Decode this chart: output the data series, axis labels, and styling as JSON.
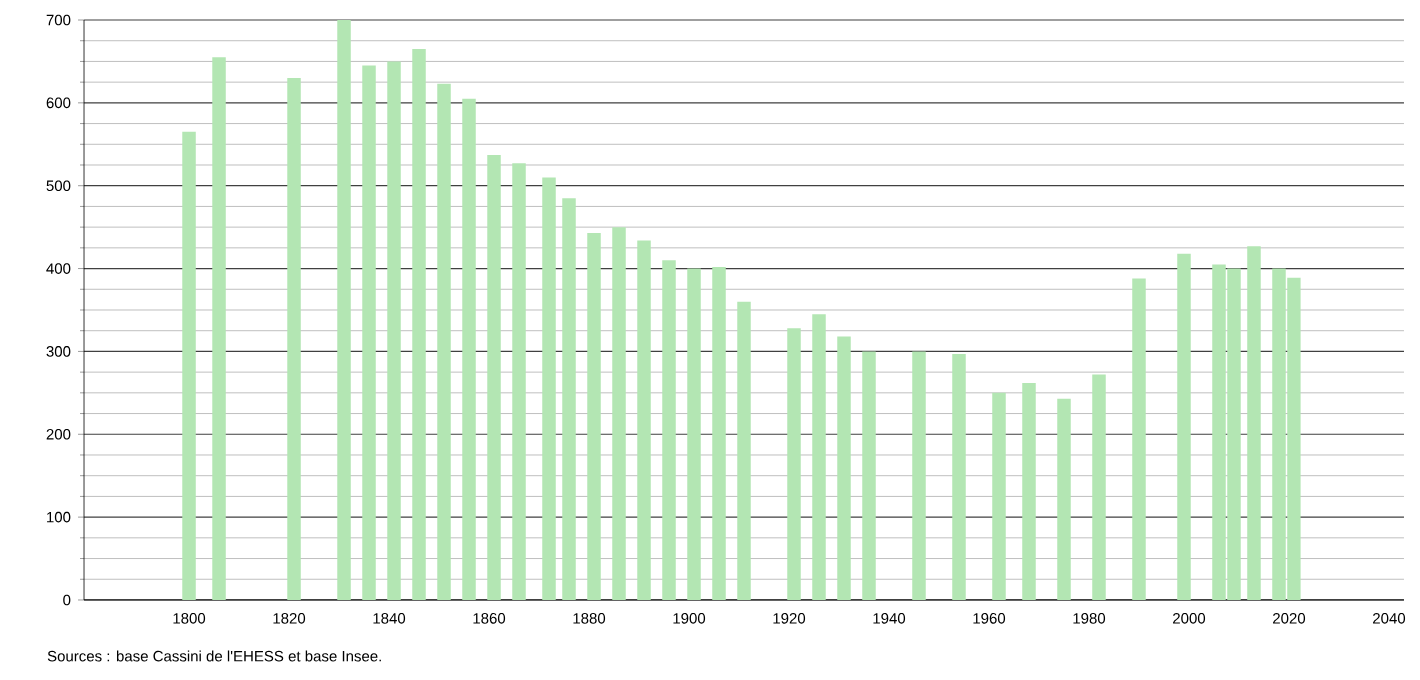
{
  "chart_data": {
    "type": "bar",
    "x": [
      1800,
      1806,
      1821,
      1831,
      1836,
      1841,
      1846,
      1851,
      1856,
      1861,
      1866,
      1872,
      1876,
      1881,
      1886,
      1891,
      1896,
      1901,
      1906,
      1911,
      1921,
      1926,
      1931,
      1936,
      1946,
      1954,
      1962,
      1968,
      1975,
      1982,
      1990,
      1999,
      2006,
      2009,
      2013,
      2018,
      2021
    ],
    "values": [
      565,
      655,
      630,
      700,
      645,
      650,
      665,
      623,
      605,
      537,
      527,
      510,
      485,
      443,
      450,
      434,
      410,
      400,
      402,
      360,
      328,
      345,
      318,
      300,
      300,
      297,
      250,
      262,
      243,
      272,
      388,
      418,
      405,
      400,
      427,
      400,
      389
    ],
    "color": "#b3e6b3",
    "xlim": [
      1779,
      2043
    ],
    "ylim": [
      0,
      700
    ],
    "xticks": [
      1800,
      1820,
      1840,
      1860,
      1880,
      1900,
      1920,
      1940,
      1960,
      1980,
      2000,
      2020,
      2040
    ],
    "yticks": [
      0,
      100,
      200,
      300,
      400,
      500,
      600,
      700
    ],
    "grid": "y",
    "annotations": [
      "Sources : base Cassini de l'EHESS et base Insee."
    ]
  }
}
